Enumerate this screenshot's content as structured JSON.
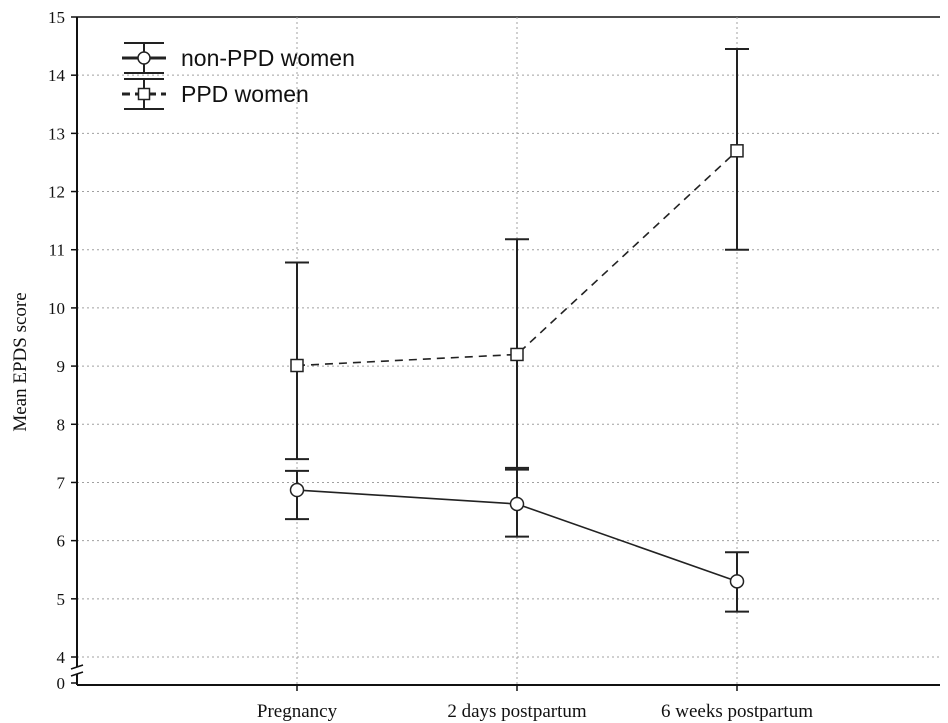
{
  "chart_data": {
    "type": "line",
    "title": "",
    "xlabel": "",
    "ylabel": "Mean EPDS score",
    "categories": [
      "Pregnancy",
      "2 days postpartum",
      "6 weeks postpartum"
    ],
    "y_ticks": [
      "0",
      "4",
      "5",
      "6",
      "7",
      "8",
      "9",
      "10",
      "11",
      "12",
      "13",
      "14",
      "15"
    ],
    "ylim": [
      0,
      15
    ],
    "axis_break": "between 0 and 4",
    "grid": true,
    "legend_position": "top-left",
    "series": [
      {
        "name": "non-PPD women",
        "line_style": "solid",
        "marker": "circle",
        "values": [
          6.87,
          6.63,
          5.3
        ],
        "error_low": [
          6.37,
          6.07,
          4.78
        ],
        "error_high": [
          7.2,
          7.25,
          5.8
        ]
      },
      {
        "name": "PPD women",
        "line_style": "dashed",
        "marker": "square",
        "values": [
          9.01,
          9.2,
          12.7
        ],
        "error_low": [
          7.4,
          7.22,
          11.0
        ],
        "error_high": [
          10.78,
          11.18,
          14.45
        ]
      }
    ],
    "colors": {
      "line": "#222222",
      "grid": "#a0a0a0"
    }
  }
}
